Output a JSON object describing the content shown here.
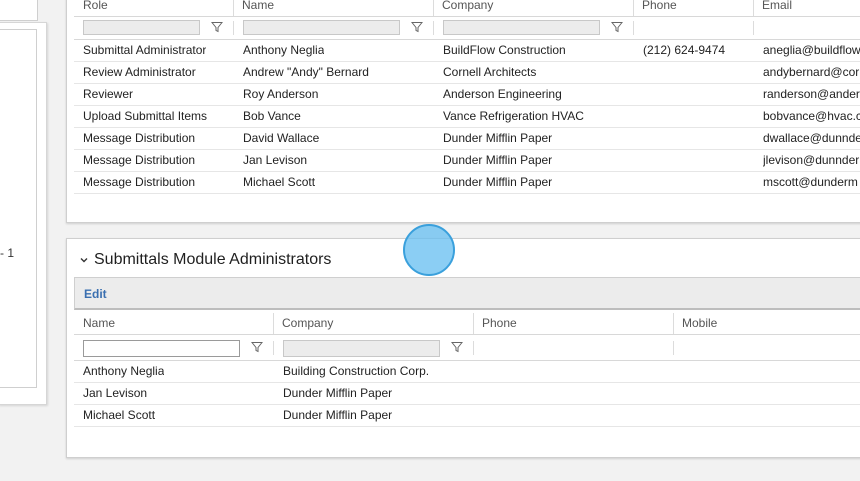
{
  "left_panel": {
    "partial_text": "- 1"
  },
  "top_grid": {
    "columns": [
      "Role",
      "Name",
      "Company",
      "Phone",
      "Email"
    ],
    "rows": [
      [
        "Submittal Administrator",
        "Anthony Neglia",
        "BuildFlow Construction",
        "(212) 624-9474",
        "aneglia@buildflow"
      ],
      [
        "Review Administrator",
        "Andrew \"Andy\" Bernard",
        "Cornell Architects",
        "",
        "andybernard@corn"
      ],
      [
        "Reviewer",
        "Roy Anderson",
        "Anderson Engineering",
        "",
        "randerson@anders"
      ],
      [
        "Upload Submittal Items",
        "Bob Vance",
        "Vance Refrigeration HVAC",
        "",
        "bobvance@hvac.c"
      ],
      [
        "Message Distribution",
        "David Wallace",
        "Dunder Mifflin Paper",
        "",
        "dwallace@dunnde"
      ],
      [
        "Message Distribution",
        "Jan Levison",
        "Dunder Mifflin Paper",
        "",
        "jlevison@dunnder"
      ],
      [
        "Message Distribution",
        "Michael Scott",
        "Dunder Mifflin Paper",
        "",
        "mscott@dunderm"
      ]
    ]
  },
  "admin_section": {
    "title": "Submittals Module Administrators",
    "edit_label": "Edit",
    "columns": [
      "Name",
      "Company",
      "Phone",
      "Mobile"
    ],
    "rows": [
      [
        "Anthony Neglia",
        "Building Construction Corp.",
        "",
        ""
      ],
      [
        "Jan Levison",
        "Dunder Mifflin Paper",
        "",
        ""
      ],
      [
        "Michael Scott",
        "Dunder Mifflin Paper",
        "",
        ""
      ]
    ]
  }
}
